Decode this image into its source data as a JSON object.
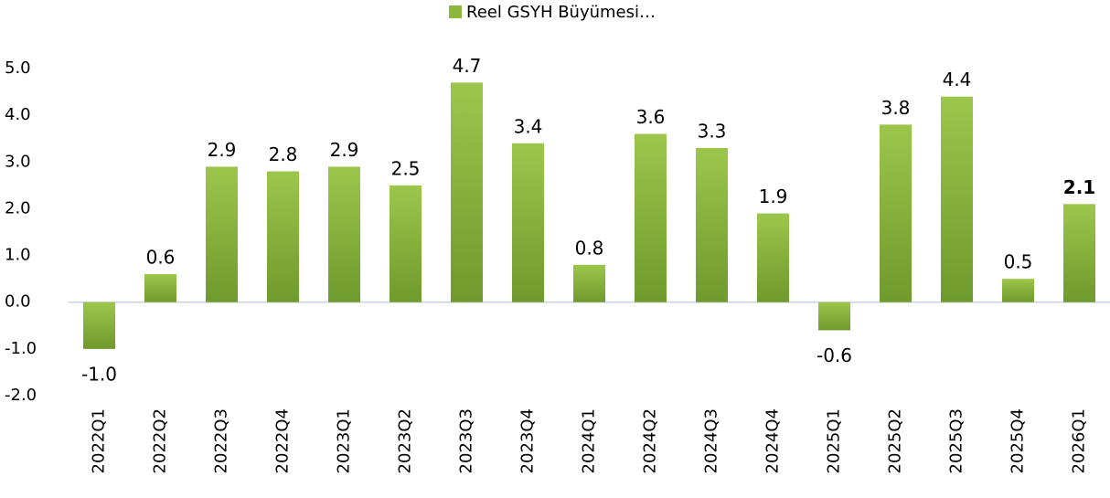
{
  "chart_data": {
    "type": "bar",
    "categories": [
      "2022Q1",
      "2022Q2",
      "2022Q3",
      "2022Q4",
      "2023Q1",
      "2023Q2",
      "2023Q3",
      "2023Q4",
      "2024Q1",
      "2024Q2",
      "2024Q3",
      "2024Q4",
      "2025Q1",
      "2025Q2",
      "2025Q3",
      "2025Q4",
      "2026Q1"
    ],
    "series": [
      {
        "name": "Reel GSYH Büyümesi…",
        "color": "#8db63c",
        "values": [
          -1.0,
          0.6,
          2.9,
          2.8,
          2.9,
          2.5,
          4.7,
          3.4,
          0.8,
          3.6,
          3.3,
          1.9,
          -0.6,
          3.8,
          4.4,
          0.5,
          2.1
        ],
        "value_labels": [
          "-1.0",
          "0.6",
          "2.9",
          "2.8",
          "2.9",
          "2.5",
          "4.7",
          "3.4",
          "0.8",
          "3.6",
          "3.3",
          "1.9",
          "-0.6",
          "3.8",
          "4.4",
          "0.5",
          "2.1"
        ],
        "value_label_colors": [
          "#000000",
          "#000000",
          "#000000",
          "#000000",
          "#000000",
          "#000000",
          "#000000",
          "#000000",
          "#000000",
          "#000000",
          "#000000",
          "#000000",
          "#000000",
          "#000000",
          "#000000",
          "#000000",
          "#c00000"
        ]
      }
    ],
    "ylim": [
      -2,
      5
    ],
    "yticks": [
      {
        "value": -2,
        "label": "-2.0"
      },
      {
        "value": -1,
        "label": "-1.0"
      },
      {
        "value": 0,
        "label": "0.0"
      },
      {
        "value": 1,
        "label": "1.0"
      },
      {
        "value": 2,
        "label": "2.0"
      },
      {
        "value": 3,
        "label": "3.0"
      },
      {
        "value": 4,
        "label": "4.0"
      },
      {
        "value": 5,
        "label": "5.0"
      }
    ],
    "grid": false,
    "legend": "top"
  }
}
